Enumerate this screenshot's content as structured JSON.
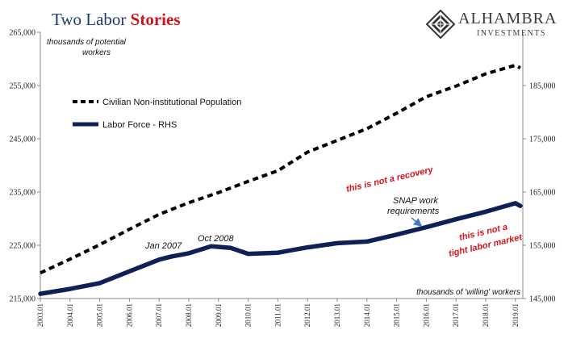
{
  "header": {
    "title": "Two Labor",
    "title_accent": "Stories",
    "brand_name": "ALHAMBRA",
    "brand_sub": "INVESTMENTS"
  },
  "colors": {
    "title": "#1f3a6e",
    "accent": "#d4141c",
    "population": "#000000",
    "labor_force": "#0e2157"
  },
  "chart_data": {
    "type": "line",
    "title": "",
    "x": [
      "2003.01",
      "2004.01",
      "2005.01",
      "2006.01",
      "2007.01",
      "2008.01",
      "2009.01",
      "2010.01",
      "2011.01",
      "2012.01",
      "2013.01",
      "2014.01",
      "2015.01",
      "2016.01",
      "2017.01",
      "2018.01",
      "2019.01"
    ],
    "xlim": [
      "2003.01",
      "2019.04"
    ],
    "left_axis": {
      "label": "thousands of potential workers",
      "ylim": [
        215000,
        265000
      ],
      "ticks": [
        "215,000",
        "225,000",
        "235,000",
        "245,000",
        "255,000",
        "265,000"
      ]
    },
    "right_axis": {
      "label": "thousands of 'willing' workers",
      "ylim": [
        145000,
        195000
      ],
      "ticks": [
        "145,000",
        "155,000",
        "165,000",
        "175,000",
        "185,000"
      ]
    },
    "series": [
      {
        "name": "Civilian Non-institutional Population",
        "axis": "left",
        "style": "dashed",
        "color": "#000000",
        "x": [
          "2003.01",
          "2004.01",
          "2005.01",
          "2006.01",
          "2007.01",
          "2008.01",
          "2009.01",
          "2010.01",
          "2011.01",
          "2012.01",
          "2013.01",
          "2014.01",
          "2015.01",
          "2016.01",
          "2017.01",
          "2018.01",
          "2019.01",
          "2019.03"
        ],
        "values": [
          219800,
          222400,
          225100,
          228000,
          230800,
          233000,
          234900,
          237000,
          239000,
          242500,
          244700,
          246900,
          249800,
          252900,
          254900,
          257200,
          258800,
          258300
        ]
      },
      {
        "name": "Labor Force - RHS",
        "axis": "right",
        "style": "solid",
        "color": "#0e2157",
        "x": [
          "2003.01",
          "2004.01",
          "2005.01",
          "2006.01",
          "2007.01",
          "2007.06",
          "2008.01",
          "2008.10",
          "2009.06",
          "2010.01",
          "2011.01",
          "2012.01",
          "2013.01",
          "2014.01",
          "2015.01",
          "2016.01",
          "2017.01",
          "2018.01",
          "2019.01",
          "2019.03"
        ],
        "values": [
          145900,
          146800,
          147900,
          150100,
          152300,
          152900,
          153500,
          154800,
          154500,
          153400,
          153600,
          154600,
          155400,
          155700,
          157000,
          158400,
          159900,
          161300,
          162900,
          162400
        ]
      }
    ],
    "annotations": {
      "jan2007": "Jan 2007",
      "oct2008": "Oct 2008",
      "not_recovery": "this is not a recovery",
      "snap_line1": "SNAP work",
      "snap_line2": "requirements",
      "tight_line1": "this is not a",
      "tight_line2": "tight labor market"
    },
    "grid": false,
    "legend_position": "top-left"
  }
}
